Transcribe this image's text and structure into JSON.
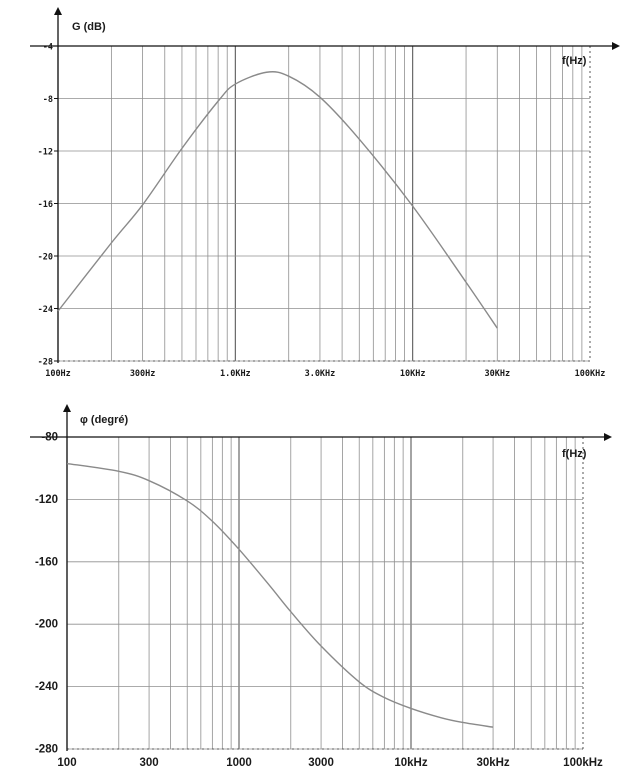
{
  "chart_data": [
    {
      "type": "line",
      "ylabel": "G (dB)",
      "xlabel": "f(Hz)",
      "x_scale": "log",
      "xlim": [
        100,
        100000
      ],
      "ylim": [
        -28,
        -4
      ],
      "y_ticks": [
        -4,
        -8,
        -12,
        -16,
        -20,
        -24,
        -28
      ],
      "y_tick_labels": [
        "-4",
        "-8",
        "-12",
        "-16",
        "-20",
        "-24",
        "-28"
      ],
      "x_ticks": [
        100,
        300,
        1000,
        3000,
        10000,
        30000,
        100000
      ],
      "x_tick_labels": [
        "100Hz",
        "300Hz",
        "1.0KHz",
        "3.0KHz",
        "10KHz",
        "30KHz",
        "100KHz"
      ],
      "grid": true,
      "series": [
        {
          "color": "#8a8a8a",
          "x": [
            100,
            200,
            300,
            500,
            800,
            1000,
            1500,
            2000,
            3000,
            5000,
            10000,
            20000,
            30000
          ],
          "y": [
            -24.2,
            -19.0,
            -16.1,
            -11.8,
            -8.2,
            -6.9,
            -6.0,
            -6.3,
            -7.9,
            -11.1,
            -16.2,
            -22.0,
            -25.5
          ]
        }
      ]
    },
    {
      "type": "line",
      "ylabel": "φ (degré)",
      "xlabel": "f(Hz)",
      "x_scale": "log",
      "xlim": [
        100,
        100000
      ],
      "ylim": [
        -280,
        -80
      ],
      "y_ticks": [
        -80,
        -120,
        -160,
        -200,
        -240,
        -280
      ],
      "y_tick_labels": [
        "-80",
        "-120",
        "-160",
        "-200",
        "-240",
        "-280"
      ],
      "x_ticks": [
        100,
        300,
        1000,
        3000,
        10000,
        30000,
        100000
      ],
      "x_tick_labels": [
        "100",
        "300",
        "1000",
        "3000",
        "10kHz",
        "30kHz",
        "100kHz"
      ],
      "grid": true,
      "series": [
        {
          "color": "#8a8a8a",
          "x": [
            100,
            200,
            300,
            500,
            700,
            1000,
            1500,
            2000,
            3000,
            5000,
            7000,
            10000,
            15000,
            20000,
            30000
          ],
          "y": [
            -97,
            -102,
            -108,
            -121,
            -134,
            -152,
            -175,
            -192,
            -214,
            -237,
            -247,
            -254,
            -260,
            -263,
            -266
          ]
        }
      ]
    }
  ]
}
